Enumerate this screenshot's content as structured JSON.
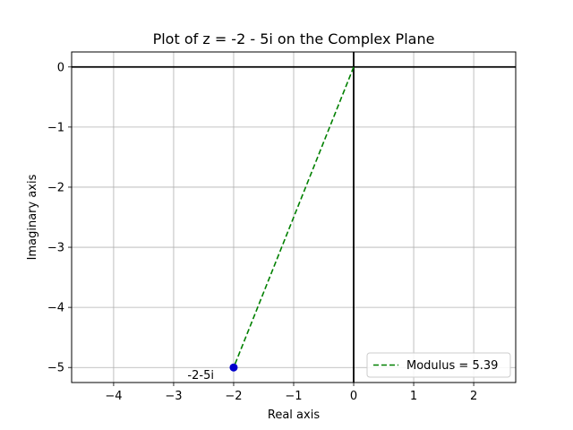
{
  "chart_data": {
    "type": "scatter",
    "title": "Plot of z = -2 - 5i on the Complex Plane",
    "xlabel": "Real axis",
    "ylabel": "Imaginary axis",
    "xlim": [
      -4.7,
      2.7
    ],
    "ylim": [
      -5.25,
      0.25
    ],
    "xticks": [
      -4,
      -3,
      -2,
      -1,
      0,
      1,
      2
    ],
    "yticks": [
      0,
      -1,
      -2,
      -3,
      -4,
      -5
    ],
    "xtick_labels": [
      "−4",
      "−3",
      "−2",
      "−1",
      "0",
      "1",
      "2"
    ],
    "ytick_labels": [
      "0",
      "−1",
      "−2",
      "−3",
      "−4",
      "−5"
    ],
    "grid": true,
    "point": {
      "x": -2,
      "y": -5,
      "label": "-2-5i",
      "color": "#0000cc"
    },
    "series": [
      {
        "name": "Modulus = 5.39",
        "style": "dashed",
        "color": "#008000",
        "x": [
          0,
          -2
        ],
        "y": [
          0,
          -5
        ]
      }
    ],
    "reference_lines": {
      "x": 0,
      "y": 0,
      "color": "#000000"
    },
    "legend": {
      "position": "lower-right",
      "entries": [
        "Modulus = 5.39"
      ]
    }
  }
}
